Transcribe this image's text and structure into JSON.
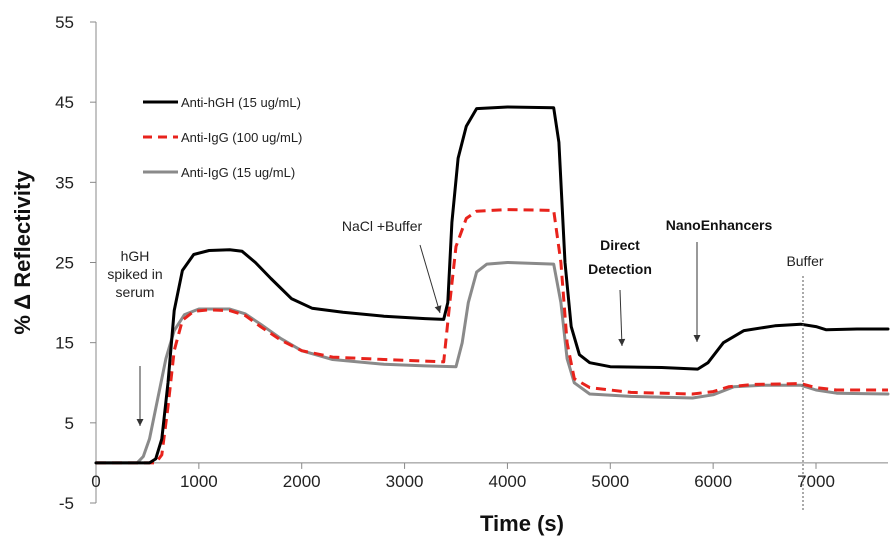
{
  "chart_data": {
    "type": "line",
    "title": "",
    "xlabel": "Time (s)",
    "ylabel": "% Δ Reflectivity",
    "xlim": [
      0,
      7700
    ],
    "ylim": [
      -5,
      55
    ],
    "x_ticks": [
      0,
      1000,
      2000,
      3000,
      4000,
      5000,
      6000,
      7000
    ],
    "y_ticks": [
      -5,
      5,
      15,
      25,
      35,
      45,
      55
    ],
    "grid": false,
    "legend_position": "top-left",
    "series": [
      {
        "name": "Anti-hGH (15 ug/mL)",
        "color": "#000000",
        "dash": "solid",
        "points": [
          [
            0,
            0
          ],
          [
            520,
            0
          ],
          [
            580,
            0.5
          ],
          [
            640,
            3
          ],
          [
            700,
            10
          ],
          [
            760,
            19
          ],
          [
            840,
            24
          ],
          [
            950,
            26
          ],
          [
            1100,
            26.5
          ],
          [
            1300,
            26.6
          ],
          [
            1420,
            26.4
          ],
          [
            1550,
            25
          ],
          [
            1700,
            23
          ],
          [
            1900,
            20.5
          ],
          [
            2100,
            19.3
          ],
          [
            2400,
            18.8
          ],
          [
            2800,
            18.3
          ],
          [
            3200,
            18
          ],
          [
            3380,
            17.9
          ],
          [
            3420,
            20
          ],
          [
            3460,
            30
          ],
          [
            3520,
            38
          ],
          [
            3600,
            42
          ],
          [
            3700,
            44.2
          ],
          [
            4000,
            44.4
          ],
          [
            4450,
            44.3
          ],
          [
            4500,
            40
          ],
          [
            4560,
            25
          ],
          [
            4620,
            17
          ],
          [
            4700,
            13.5
          ],
          [
            4800,
            12.5
          ],
          [
            5000,
            12
          ],
          [
            5500,
            11.9
          ],
          [
            5850,
            11.7
          ],
          [
            5950,
            12.5
          ],
          [
            6100,
            15
          ],
          [
            6300,
            16.5
          ],
          [
            6600,
            17.1
          ],
          [
            6850,
            17.3
          ],
          [
            7000,
            17
          ],
          [
            7100,
            16.6
          ],
          [
            7400,
            16.7
          ],
          [
            7700,
            16.7
          ]
        ]
      },
      {
        "name": "Anti-IgG (100 ug/mL)",
        "color": "#e8231c",
        "dash": "dashed",
        "points": [
          [
            0,
            0
          ],
          [
            580,
            0
          ],
          [
            640,
            1
          ],
          [
            700,
            7
          ],
          [
            760,
            14
          ],
          [
            840,
            17.8
          ],
          [
            950,
            18.9
          ],
          [
            1100,
            19.1
          ],
          [
            1300,
            19
          ],
          [
            1450,
            18.4
          ],
          [
            1600,
            17
          ],
          [
            1800,
            15.3
          ],
          [
            2000,
            14
          ],
          [
            2300,
            13.2
          ],
          [
            2800,
            12.9
          ],
          [
            3200,
            12.7
          ],
          [
            3380,
            12.6
          ],
          [
            3440,
            20
          ],
          [
            3500,
            27
          ],
          [
            3600,
            30.5
          ],
          [
            3700,
            31.4
          ],
          [
            4000,
            31.6
          ],
          [
            4450,
            31.5
          ],
          [
            4520,
            25
          ],
          [
            4580,
            15
          ],
          [
            4650,
            10.5
          ],
          [
            4800,
            9.4
          ],
          [
            5200,
            8.8
          ],
          [
            5800,
            8.6
          ],
          [
            6000,
            8.9
          ],
          [
            6150,
            9.5
          ],
          [
            6400,
            9.8
          ],
          [
            6850,
            9.9
          ],
          [
            7000,
            9.4
          ],
          [
            7200,
            9.1
          ],
          [
            7700,
            9.1
          ]
        ]
      },
      {
        "name": "Anti-IgG (15 ug/mL)",
        "color": "#8a8a8a",
        "dash": "solid",
        "points": [
          [
            0,
            0
          ],
          [
            400,
            0
          ],
          [
            460,
            0.8
          ],
          [
            520,
            3
          ],
          [
            600,
            8
          ],
          [
            680,
            13
          ],
          [
            760,
            16.5
          ],
          [
            860,
            18.5
          ],
          [
            1000,
            19.2
          ],
          [
            1300,
            19.2
          ],
          [
            1450,
            18.6
          ],
          [
            1600,
            17.3
          ],
          [
            1800,
            15.5
          ],
          [
            2000,
            14
          ],
          [
            2300,
            12.9
          ],
          [
            2800,
            12.3
          ],
          [
            3200,
            12.1
          ],
          [
            3500,
            12
          ],
          [
            3560,
            15
          ],
          [
            3620,
            20
          ],
          [
            3700,
            23.8
          ],
          [
            3800,
            24.8
          ],
          [
            4000,
            25
          ],
          [
            4450,
            24.8
          ],
          [
            4520,
            20
          ],
          [
            4580,
            13
          ],
          [
            4650,
            10
          ],
          [
            4800,
            8.6
          ],
          [
            5200,
            8.3
          ],
          [
            5800,
            8.1
          ],
          [
            6000,
            8.5
          ],
          [
            6200,
            9.5
          ],
          [
            6500,
            9.7
          ],
          [
            6850,
            9.7
          ],
          [
            7000,
            9.1
          ],
          [
            7200,
            8.7
          ],
          [
            7700,
            8.6
          ]
        ]
      }
    ],
    "annotations": [
      {
        "lines": [
          "hGH",
          "spiked in",
          "serum"
        ],
        "bold": false
      },
      {
        "lines": [
          "NaCl +Buffer"
        ],
        "bold": false
      },
      {
        "lines": [
          "Direct",
          "Detection"
        ],
        "bold": true
      },
      {
        "lines": [
          "NanoEnhancers"
        ],
        "bold": true
      },
      {
        "lines": [
          "Buffer"
        ],
        "bold": false
      }
    ]
  }
}
